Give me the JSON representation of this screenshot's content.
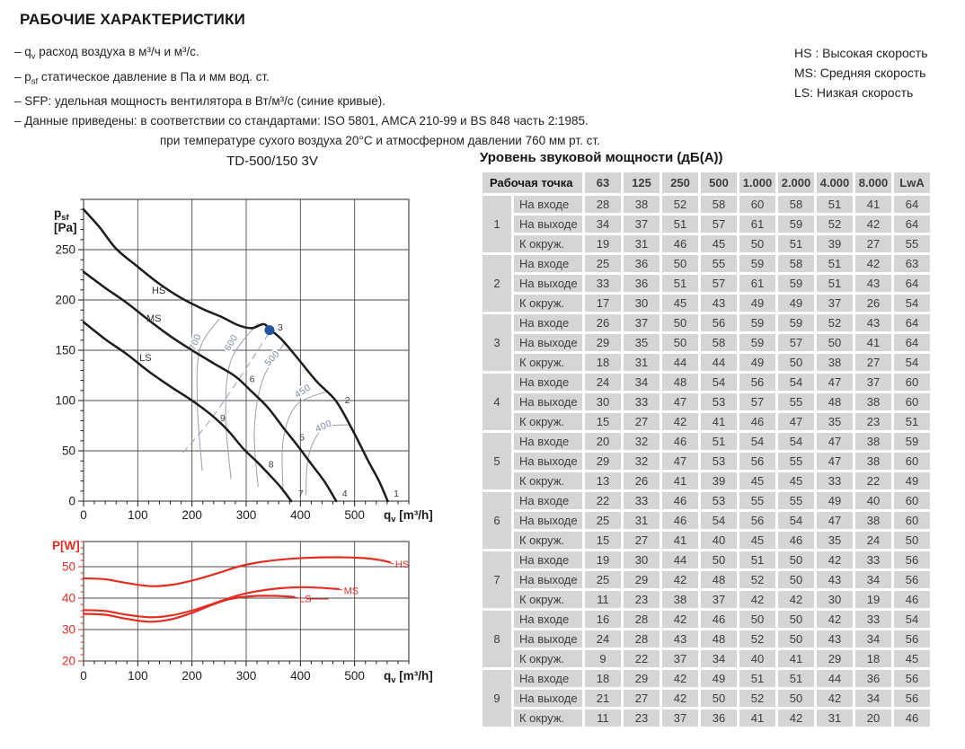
{
  "header": {
    "title": "РАБОЧИЕ ХАРАКТЕРИСТИКИ",
    "bullets": [
      {
        "segments": [
          {
            "t": "– q"
          },
          {
            "t": "v",
            "sub": true
          },
          {
            "t": " расход воздуха в м³/ч и м³/с."
          }
        ]
      },
      {
        "segments": [
          {
            "t": "– p"
          },
          {
            "t": "sf",
            "sub": true
          },
          {
            "t": "  статическое давление в Па и мм вод. ст."
          }
        ]
      },
      {
        "segments": [
          {
            "t": "– SFP: удельная мощность вентилятора в Вт/м³/с (синие кривые)."
          }
        ]
      },
      {
        "segments": [
          {
            "t": "– Данные приведены: в соответствии со стандартами: ISO 5801, AMCA 210-99 и BS 848 часть 2:1985."
          }
        ]
      },
      {
        "indent": true,
        "segments": [
          {
            "t": "при температуре сухого воздуха 20°C и атмосферном давлении 760 мм рт. ст."
          }
        ]
      }
    ]
  },
  "legend": {
    "items": [
      "HS : Высокая скорость",
      "MS: Средняя скорость",
      "LS: Низкая скорость"
    ]
  },
  "table": {
    "title": "Уровень звуковой мощности (дБ(А))",
    "col_point_header": "Рабочая точка",
    "freq_headers": [
      "63",
      "125",
      "250",
      "500",
      "1.000",
      "2.000",
      "4.000",
      "8.000",
      "LwA"
    ],
    "row_labels": [
      "На входе",
      "На выходе",
      "К окруж."
    ],
    "points": [
      {
        "id": "1",
        "rows": [
          [
            28,
            38,
            52,
            58,
            60,
            58,
            51,
            41,
            64
          ],
          [
            34,
            37,
            51,
            57,
            61,
            59,
            52,
            42,
            64
          ],
          [
            19,
            31,
            46,
            45,
            50,
            51,
            39,
            27,
            55
          ]
        ]
      },
      {
        "id": "2",
        "rows": [
          [
            25,
            36,
            50,
            55,
            59,
            58,
            51,
            42,
            63
          ],
          [
            33,
            36,
            51,
            57,
            61,
            59,
            51,
            43,
            64
          ],
          [
            17,
            30,
            45,
            43,
            49,
            49,
            37,
            26,
            54
          ]
        ]
      },
      {
        "id": "3",
        "rows": [
          [
            26,
            37,
            50,
            56,
            59,
            59,
            52,
            43,
            64
          ],
          [
            29,
            35,
            50,
            58,
            59,
            57,
            50,
            41,
            64
          ],
          [
            18,
            31,
            44,
            44,
            49,
            50,
            38,
            27,
            54
          ]
        ]
      },
      {
        "id": "4",
        "rows": [
          [
            24,
            34,
            48,
            54,
            56,
            54,
            47,
            37,
            60
          ],
          [
            30,
            33,
            47,
            53,
            57,
            55,
            48,
            38,
            60
          ],
          [
            15,
            27,
            42,
            41,
            46,
            47,
            35,
            23,
            51
          ]
        ]
      },
      {
        "id": "5",
        "rows": [
          [
            20,
            32,
            46,
            51,
            54,
            54,
            47,
            38,
            59
          ],
          [
            29,
            32,
            47,
            53,
            56,
            55,
            47,
            38,
            60
          ],
          [
            13,
            26,
            41,
            39,
            45,
            45,
            33,
            22,
            49
          ]
        ]
      },
      {
        "id": "6",
        "rows": [
          [
            22,
            33,
            46,
            53,
            55,
            55,
            49,
            40,
            60
          ],
          [
            25,
            31,
            46,
            54,
            56,
            54,
            47,
            38,
            60
          ],
          [
            15,
            27,
            41,
            40,
            45,
            46,
            35,
            24,
            50
          ]
        ]
      },
      {
        "id": "7",
        "rows": [
          [
            19,
            30,
            44,
            50,
            51,
            50,
            42,
            33,
            56
          ],
          [
            25,
            29,
            42,
            48,
            52,
            50,
            43,
            34,
            56
          ],
          [
            11,
            23,
            38,
            37,
            42,
            42,
            30,
            19,
            46
          ]
        ]
      },
      {
        "id": "8",
        "rows": [
          [
            16,
            28,
            42,
            46,
            50,
            50,
            42,
            33,
            54
          ],
          [
            24,
            28,
            43,
            48,
            52,
            50,
            43,
            34,
            56
          ],
          [
            9,
            22,
            37,
            34,
            40,
            41,
            29,
            18,
            45
          ]
        ]
      },
      {
        "id": "9",
        "rows": [
          [
            18,
            29,
            42,
            49,
            51,
            51,
            44,
            36,
            56
          ],
          [
            21,
            27,
            42,
            50,
            52,
            50,
            42,
            34,
            56
          ],
          [
            11,
            23,
            37,
            36,
            41,
            42,
            31,
            20,
            46
          ]
        ]
      }
    ]
  },
  "chart_data": [
    {
      "type": "line",
      "title": "TD-500/150 3V",
      "xlabel": {
        "sym": "q",
        "sub": "v",
        "unit": " [m³/h]"
      },
      "ylabel_lines": [
        {
          "sym": "p",
          "sub": "sf"
        },
        {
          "text": "[Pa]"
        }
      ],
      "xlim": [
        0,
        600
      ],
      "ylim": [
        0,
        300
      ],
      "xticks": [
        0,
        100,
        200,
        300,
        400,
        500
      ],
      "yticks": [
        0,
        50,
        100,
        150,
        200,
        250
      ],
      "x_minor": 20,
      "y_minor": 10,
      "grid": true,
      "legend_position": "inline",
      "series": [
        {
          "name": "HS",
          "points": [
            [
              0,
              290
            ],
            [
              30,
              272
            ],
            [
              60,
              251
            ],
            [
              100,
              233
            ],
            [
              140,
              216
            ],
            [
              180,
              202
            ],
            [
              220,
              191
            ],
            [
              255,
              183
            ],
            [
              285,
              175
            ],
            [
              310,
              172
            ],
            [
              332,
              176
            ],
            [
              343,
              171
            ],
            [
              365,
              161
            ],
            [
              395,
              142
            ],
            [
              430,
              119
            ],
            [
              465,
              100
            ],
            [
              495,
              72
            ],
            [
              525,
              40
            ],
            [
              545,
              20
            ],
            [
              561,
              0
            ]
          ],
          "label_at": [
            126,
            210
          ]
        },
        {
          "name": "MS",
          "points": [
            [
              0,
              228
            ],
            [
              40,
              212
            ],
            [
              80,
              197
            ],
            [
              120,
              180
            ],
            [
              160,
              164
            ],
            [
              200,
              150
            ],
            [
              240,
              137
            ],
            [
              280,
              124
            ],
            [
              310,
              109
            ],
            [
              340,
              93
            ],
            [
              370,
              72
            ],
            [
              395,
              55
            ],
            [
              420,
              37
            ],
            [
              445,
              19
            ],
            [
              466,
              0
            ]
          ],
          "label_at": [
            116,
            182
          ]
        },
        {
          "name": "LS",
          "points": [
            [
              0,
              178
            ],
            [
              40,
              161
            ],
            [
              80,
              146
            ],
            [
              120,
              129
            ],
            [
              160,
              114
            ],
            [
              200,
              100
            ],
            [
              235,
              86
            ],
            [
              265,
              71
            ],
            [
              295,
              52
            ],
            [
              320,
              39
            ],
            [
              345,
              25
            ],
            [
              365,
              13
            ],
            [
              383,
              0
            ]
          ],
          "label_at": [
            103,
            143
          ]
        }
      ],
      "sfp_curves": [
        {
          "label": "700",
          "points": [
            [
              219,
              30
            ],
            [
              210,
              95
            ],
            [
              214,
              150
            ],
            [
              250,
              181
            ]
          ],
          "label_at": [
            211,
            157
          ],
          "angle": -68
        },
        {
          "label": "600",
          "points": [
            [
              272,
              22
            ],
            [
              262,
              85
            ],
            [
              272,
              140
            ],
            [
              322,
              177
            ]
          ],
          "label_at": [
            277,
            156
          ],
          "angle": -60
        },
        {
          "label": "500",
          "points": [
            [
              322,
              14
            ],
            [
              315,
              70
            ],
            [
              330,
              120
            ],
            [
              370,
              157
            ]
          ],
          "label_at": [
            352,
            140
          ],
          "angle": -48
        },
        {
          "label": "450",
          "points": [
            [
              368,
              10
            ],
            [
              368,
              60
            ],
            [
              392,
              95
            ],
            [
              448,
              109
            ]
          ],
          "label_at": [
            407,
            107
          ],
          "angle": -33
        },
        {
          "label": "400",
          "points": [
            [
              410,
              6
            ],
            [
              415,
              45
            ],
            [
              442,
              72
            ],
            [
              490,
              76
            ]
          ],
          "label_at": [
            445,
            72
          ],
          "angle": -25
        }
      ],
      "system_line": [
        [
          183,
          48
        ],
        [
          233,
          80
        ],
        [
          290,
          124
        ],
        [
          343,
          168
        ]
      ],
      "operating_point": {
        "x": 343,
        "y": 170,
        "label": "3"
      },
      "point_labels": [
        {
          "text": "1",
          "at": [
            572,
            8
          ]
        },
        {
          "text": "2",
          "at": [
            482,
            101
          ]
        },
        {
          "text": "3",
          "at": [
            358,
            173
          ]
        },
        {
          "text": "4",
          "at": [
            477,
            8
          ]
        },
        {
          "text": "5",
          "at": [
            398,
            64
          ]
        },
        {
          "text": "6",
          "at": [
            306,
            122
          ]
        },
        {
          "text": "7",
          "at": [
            396,
            8
          ]
        },
        {
          "text": "8",
          "at": [
            341,
            37
          ]
        },
        {
          "text": "9",
          "at": [
            252,
            83
          ]
        }
      ],
      "colors": {
        "curve": "#1c1c1c",
        "grid": "#4d4d4d",
        "tick_x": "#1c1c1c",
        "tick_y": "#1c1c1c",
        "label": "#1c1c1c",
        "sfp": "#98a0ac",
        "system": "#9aa0aa",
        "dot": "#2154a4",
        "point_label": "#3c3c3c",
        "series_label": "#333333"
      }
    },
    {
      "type": "line",
      "title": "",
      "xlabel": {
        "sym": "q",
        "sub": "v",
        "unit": " [m³/h]"
      },
      "ylabel_lines": [
        {
          "text": "P[W]"
        }
      ],
      "xlim": [
        0,
        600
      ],
      "ylim": [
        20,
        58
      ],
      "xticks": [
        0,
        100,
        200,
        300,
        400,
        500
      ],
      "yticks": [
        20,
        30,
        40,
        50
      ],
      "x_minor": 20,
      "y_minor": 2,
      "grid": true,
      "series": [
        {
          "name": "HS",
          "points": [
            [
              0,
              46.3
            ],
            [
              40,
              46.0
            ],
            [
              80,
              44.8
            ],
            [
              125,
              43.8
            ],
            [
              165,
              44.3
            ],
            [
              205,
              45.8
            ],
            [
              245,
              47.8
            ],
            [
              285,
              50.0
            ],
            [
              320,
              51.3
            ],
            [
              360,
              52.2
            ],
            [
              410,
              52.8
            ],
            [
              470,
              53.0
            ],
            [
              520,
              52.7
            ],
            [
              550,
              52.0
            ],
            [
              565,
              51.4
            ]
          ],
          "label_at": [
            575,
            50.8
          ],
          "leaders": [
            [
              [
                566,
                51.2
              ],
              [
                572,
                50.9
              ]
            ]
          ]
        },
        {
          "name": "MS",
          "points": [
            [
              0,
              36.2
            ],
            [
              40,
              35.9
            ],
            [
              80,
              34.7
            ],
            [
              125,
              33.9
            ],
            [
              165,
              34.6
            ],
            [
              205,
              36.3
            ],
            [
              245,
              38.6
            ],
            [
              285,
              40.9
            ],
            [
              320,
              42.2
            ],
            [
              360,
              43.1
            ],
            [
              405,
              43.5
            ],
            [
              445,
              43.2
            ],
            [
              470,
              42.9
            ]
          ],
          "label_at": [
            480,
            42.5
          ],
          "leaders": [
            [
              [
                471,
                42.9
              ],
              [
                477,
                42.6
              ]
            ]
          ]
        },
        {
          "name": "LS",
          "points": [
            [
              0,
              35.0
            ],
            [
              40,
              34.7
            ],
            [
              80,
              33.4
            ],
            [
              120,
              32.5
            ],
            [
              160,
              33.2
            ],
            [
              200,
              35.3
            ],
            [
              235,
              37.7
            ],
            [
              265,
              39.5
            ],
            [
              290,
              40.3
            ],
            [
              320,
              40.7
            ],
            [
              355,
              40.7
            ],
            [
              388,
              40.4
            ]
          ],
          "label_at": [
            398,
            39.8
          ],
          "leaders": [
            [
              [
                389,
                40.3
              ],
              [
                396,
                40.0
              ]
            ],
            [
              [
                411,
                39.7
              ],
              [
                452,
                39.7
              ]
            ]
          ]
        }
      ],
      "colors": {
        "curve": "#e22d23",
        "grid": "#4d4d4d",
        "tick_x": "#1c1c1c",
        "tick_y": "#e22d23",
        "label": "#e22d23",
        "series_label": "#e22d23"
      }
    }
  ]
}
